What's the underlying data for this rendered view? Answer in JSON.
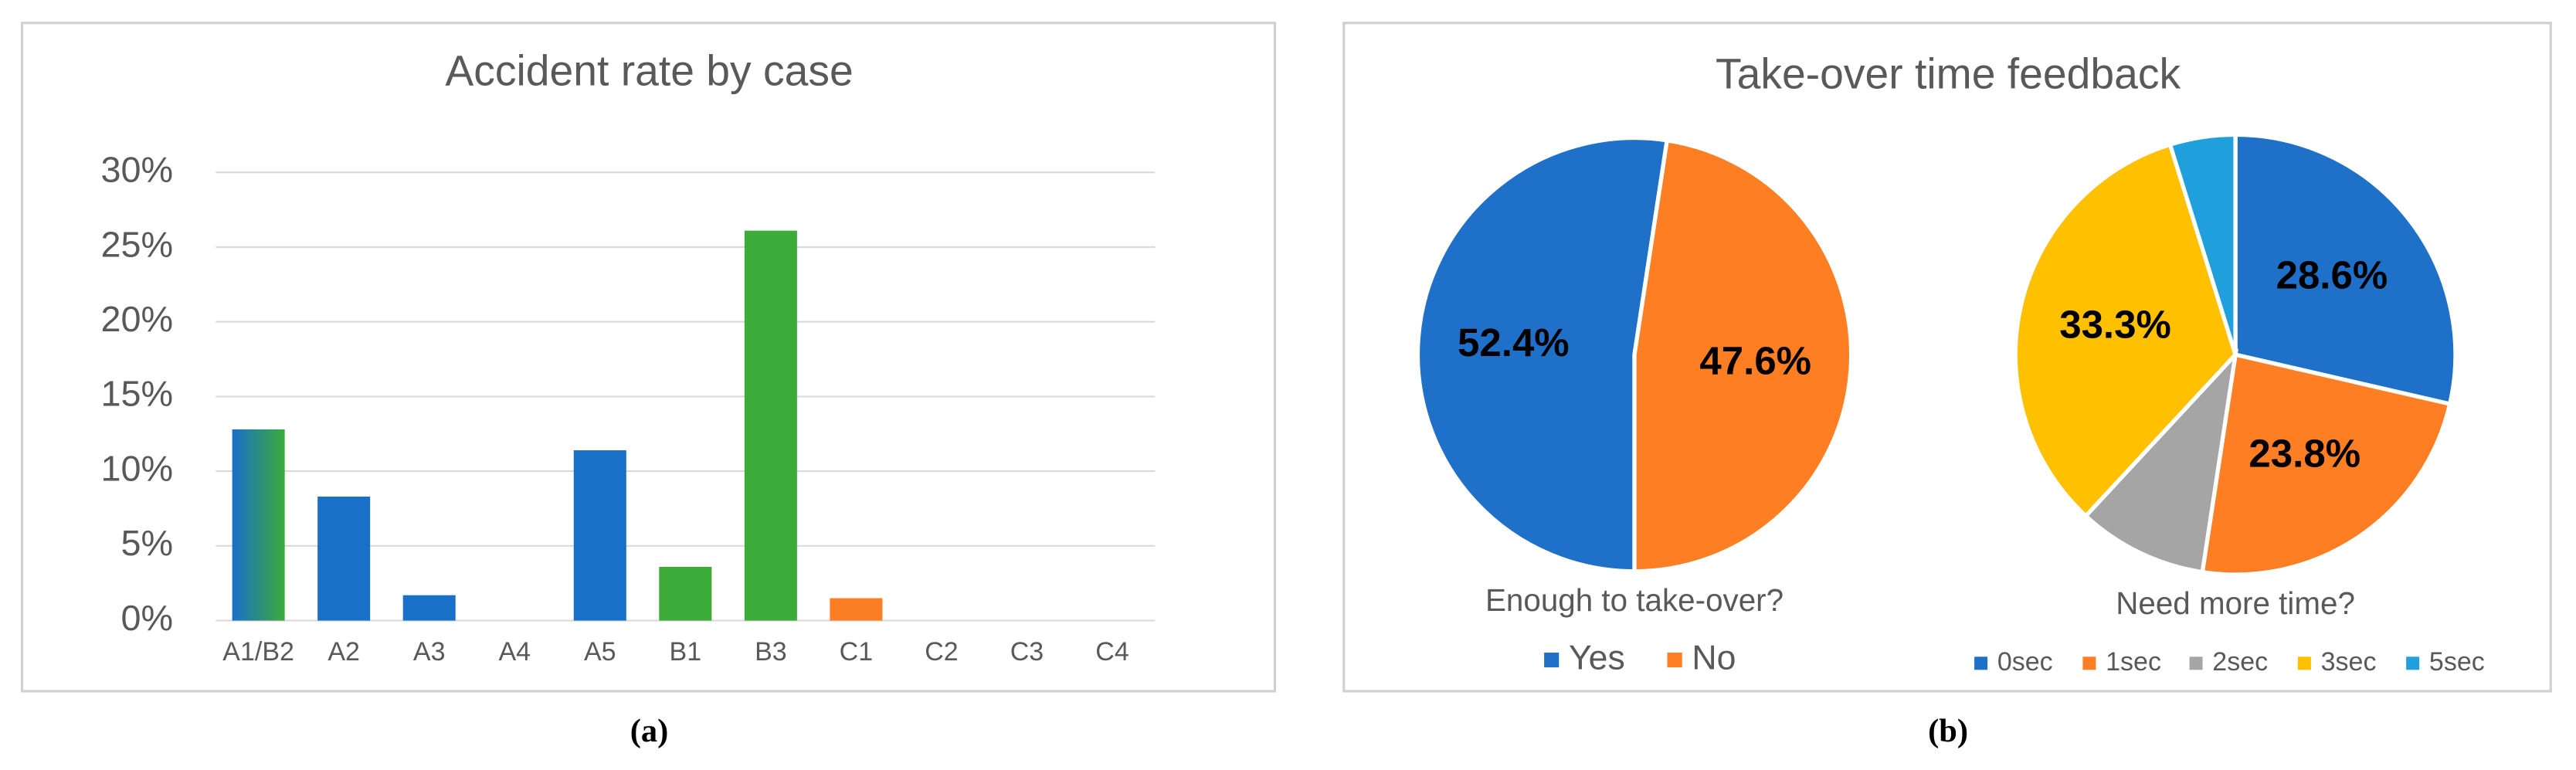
{
  "chart_data": [
    {
      "type": "bar",
      "title": "Accident rate by case",
      "categories": [
        "A1/B2",
        "A2",
        "A3",
        "A4",
        "A5",
        "B1",
        "B3",
        "C1",
        "C2",
        "C3",
        "C4"
      ],
      "values": [
        12.8,
        8.3,
        1.7,
        0,
        11.4,
        3.6,
        26.1,
        1.5,
        0,
        0,
        0
      ],
      "colors": [
        [
          "#1a6fc9",
          "#3dab3a"
        ],
        "#1a6fc9",
        "#1a6fc9",
        "#1a6fc9",
        "#1a6fc9",
        "#3dab3a",
        "#3dab3a",
        "#fb7d24",
        "#fb7d24",
        "#fb7d24",
        "#fb7d24"
      ],
      "ylim": [
        0,
        30
      ],
      "yticks": [
        {
          "value": 0,
          "label": "0%"
        },
        {
          "value": 5,
          "label": "5%"
        },
        {
          "value": 10,
          "label": "10%"
        },
        {
          "value": 15,
          "label": "15%"
        },
        {
          "value": 20,
          "label": "20%"
        },
        {
          "value": 25,
          "label": "25%"
        },
        {
          "value": 30,
          "label": "30%"
        }
      ],
      "grid": true
    },
    {
      "type": "pie",
      "title": "Take-over time feedback",
      "subtitle": "Enough to take-over?",
      "categories": [
        "Yes",
        "No"
      ],
      "values": [
        52.4,
        47.6
      ],
      "value_labels": [
        "52.4%",
        "47.6%"
      ],
      "colors": [
        "#1f70c9",
        "#fd7e23"
      ],
      "start_angle": 180
    },
    {
      "type": "pie",
      "subtitle": "Need more time?",
      "categories": [
        "0sec",
        "1sec",
        "2sec",
        "3sec",
        "5sec"
      ],
      "values": [
        28.6,
        23.8,
        9.5,
        33.3,
        4.8
      ],
      "value_labels": [
        "28.6%",
        "23.8%",
        null,
        "33.3%",
        null
      ],
      "colors": [
        "#1f70c9",
        "#fd7e23",
        "#a5a5a5",
        "#ffc000",
        "#1fa0dc"
      ],
      "start_angle": 0
    }
  ],
  "captions": [
    "(a)",
    "(b)"
  ]
}
